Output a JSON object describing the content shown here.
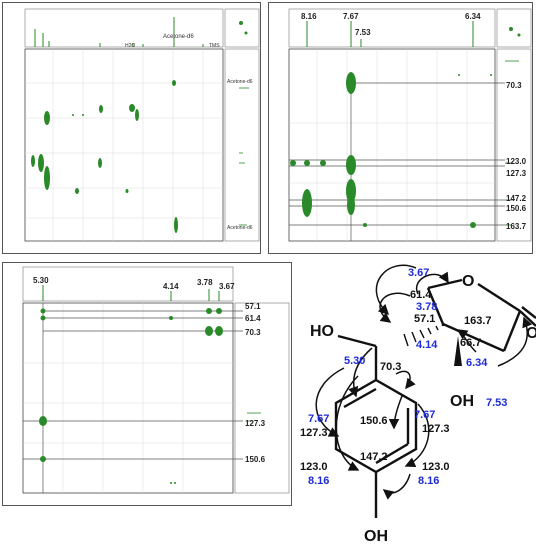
{
  "panels": {
    "panel1": {
      "top_labels": [
        "Acetone-d6",
        "H2O",
        "TMS"
      ],
      "right_labels": [
        "Acetone-d6",
        "Acetone-d6"
      ]
    },
    "panel2": {
      "top_labels": [
        "8.16",
        "7.67",
        "7.53",
        "6.34"
      ],
      "right_labels": [
        "70.3",
        "123.0",
        "127.3",
        "147.2",
        "150.6",
        "163.7"
      ]
    },
    "panel3": {
      "top_labels": [
        "5.30",
        "4.14",
        "3.78",
        "3.67"
      ],
      "right_labels": [
        "57.1",
        "61.4",
        "70.3",
        "127.3",
        "150.6"
      ]
    }
  },
  "structure": {
    "black_labels": [
      "61.4",
      "57.1",
      "163.7",
      "66.7",
      "70.3",
      "150.6",
      "127.3",
      "127.3",
      "123.0",
      "123.0",
      "147.2"
    ],
    "blue_labels": [
      "3.67",
      "3.78",
      "4.14",
      "5.30",
      "6.34",
      "7.53",
      "7.67",
      "7.67",
      "8.16",
      "8.16"
    ],
    "atoms": [
      "O",
      "O",
      "HO",
      "OH",
      "OH"
    ]
  },
  "colors": {
    "peak": "#2a8a2a",
    "blue_shift": "#1d2bd6",
    "frame": "#555555"
  }
}
